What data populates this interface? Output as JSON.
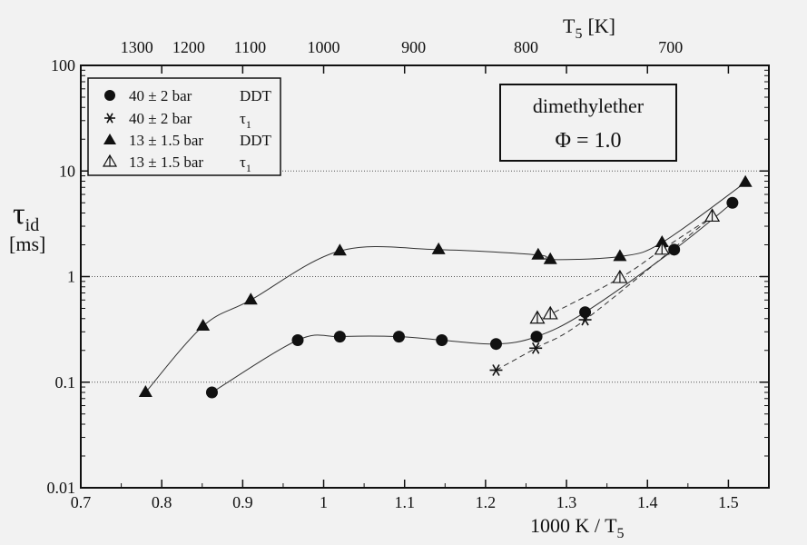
{
  "chart_data": {
    "type": "scatter",
    "xlabel": "1000 K / T",
    "xlabel_sub": "5",
    "ylabel": "τ",
    "ylabel_sub": "id",
    "yunit": "[ms]",
    "top_axis_label": "T",
    "top_axis_label_sub": "5",
    "top_axis_unit": "[K]",
    "xlim": [
      0.7,
      1.55
    ],
    "ylim": [
      0.01,
      100
    ],
    "yscale": "log",
    "x_ticks": [
      "0.7",
      "0.8",
      "0.9",
      "1",
      "1.1",
      "1.2",
      "1.3",
      "1.4",
      "1.5"
    ],
    "y_ticks": [
      "0.01",
      "0.1",
      "1",
      "10",
      "100"
    ],
    "top_ticks": [
      1300,
      1200,
      1100,
      1000,
      900,
      800,
      700
    ],
    "grid": "horizontal dotted at 0.1, 1, 10",
    "annotation": {
      "line1": "dimethylether",
      "line2": "Φ  = 1.0"
    },
    "legend_position": "top-left",
    "series": [
      {
        "name": "40 ± 2 bar",
        "label": "DDT",
        "marker": "circle",
        "x": [
          0.862,
          0.968,
          1.02,
          1.093,
          1.146,
          1.213,
          1.263,
          1.323,
          1.433,
          1.505
        ],
        "y": [
          0.08,
          0.25,
          0.27,
          0.27,
          0.25,
          0.23,
          0.27,
          0.46,
          1.8,
          5.0
        ]
      },
      {
        "name": "40 ± 2 bar",
        "label": "τ",
        "label_sub": "1",
        "marker": "asterisk",
        "x": [
          1.213,
          1.262,
          1.323
        ],
        "y": [
          0.13,
          0.21,
          0.39
        ]
      },
      {
        "name": "13 ± 1.5 bar",
        "label": "DDT",
        "marker": "triangle-filled",
        "x": [
          0.78,
          0.851,
          0.91,
          1.02,
          1.142,
          1.265,
          1.28,
          1.366,
          1.418,
          1.521
        ],
        "y": [
          0.08,
          0.34,
          0.6,
          1.75,
          1.8,
          1.6,
          1.45,
          1.55,
          2.1,
          7.8
        ]
      },
      {
        "name": "13 ± 1.5 bar",
        "label": "τ",
        "label_sub": "1",
        "marker": "triangle-open",
        "x": [
          1.264,
          1.28,
          1.366,
          1.418,
          1.48
        ],
        "y": [
          0.4,
          0.44,
          0.97,
          1.8,
          3.7
        ]
      }
    ]
  }
}
